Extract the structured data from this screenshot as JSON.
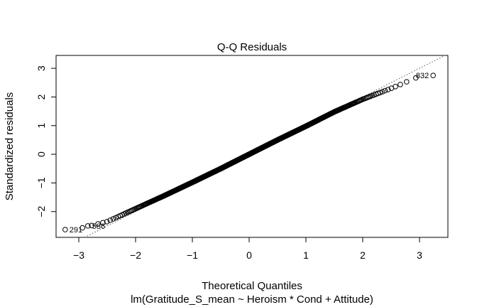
{
  "chart_data": {
    "type": "scatter",
    "title": "Q-Q Residuals",
    "xlabel": "Theoretical Quantiles",
    "ylabel": "Standardized residuals",
    "caption": "lm(Gratitude_S_mean ~ Heroism * Cond + Attitude)",
    "xlim": [
      -3.4,
      3.5
    ],
    "ylim": [
      -2.9,
      3.45
    ],
    "x_ticks": [
      -3,
      -2,
      -1,
      0,
      1,
      2,
      3
    ],
    "y_ticks": [
      -2,
      -1,
      0,
      1,
      2,
      3
    ],
    "grid": false,
    "reference_line": {
      "style": "dotted",
      "slope": 1.0,
      "intercept": 0.0
    },
    "n_points": 900,
    "sample_points": [
      {
        "x": -3.0,
        "y": -2.6
      },
      {
        "x": -2.5,
        "y": -2.35
      },
      {
        "x": -2.0,
        "y": -1.9
      },
      {
        "x": -1.5,
        "y": -1.45
      },
      {
        "x": -1.0,
        "y": -0.98
      },
      {
        "x": -0.5,
        "y": -0.5
      },
      {
        "x": 0.0,
        "y": 0.0
      },
      {
        "x": 0.5,
        "y": 0.5
      },
      {
        "x": 1.0,
        "y": 0.98
      },
      {
        "x": 1.5,
        "y": 1.48
      },
      {
        "x": 2.0,
        "y": 1.92
      },
      {
        "x": 2.5,
        "y": 2.3
      },
      {
        "x": 3.0,
        "y": 2.72
      }
    ],
    "labeled_points": [
      {
        "label": "291",
        "x": -3.24,
        "y": -2.63
      },
      {
        "label": "586",
        "x": -2.84,
        "y": -2.5
      },
      {
        "label": "832",
        "x": 3.24,
        "y": 2.75
      }
    ]
  }
}
